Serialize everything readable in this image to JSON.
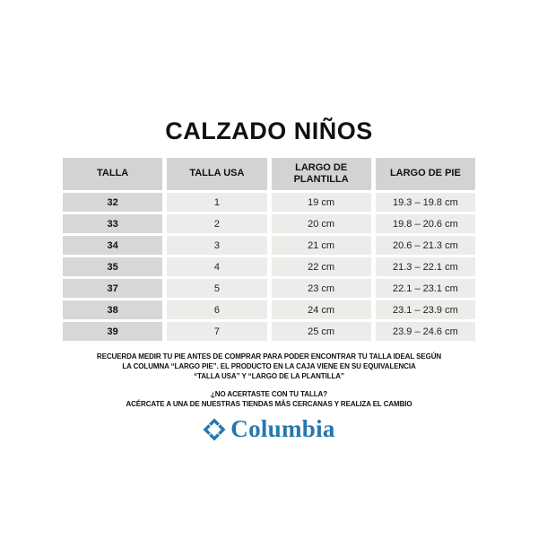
{
  "page": {
    "title": "CALZADO NIÑOS",
    "background_color": "#ffffff"
  },
  "chart_data": {
    "type": "table",
    "title": "CALZADO NIÑOS",
    "columns": [
      "TALLA",
      "TALLA USA",
      "LARGO DE PLANTILLA",
      "LARGO DE PIE"
    ],
    "rows": [
      [
        "32",
        "1",
        "19 cm",
        "19.3 – 19.8 cm"
      ],
      [
        "33",
        "2",
        "20 cm",
        "19.8 – 20.6 cm"
      ],
      [
        "34",
        "3",
        "21 cm",
        "20.6 – 21.3 cm"
      ],
      [
        "35",
        "4",
        "22 cm",
        "21.3 – 22.1 cm"
      ],
      [
        "37",
        "5",
        "23 cm",
        "22.1 – 23.1 cm"
      ],
      [
        "38",
        "6",
        "24 cm",
        "23.1 – 23.9 cm"
      ],
      [
        "39",
        "7",
        "25 cm",
        "23.9 – 24.6 cm"
      ]
    ],
    "header_bg": "#d3d3d3",
    "first_column_bg": "#d7d7d7",
    "cell_bg": "#edecea"
  },
  "notes": {
    "line1": "RECUERDA MEDIR TU PIE ANTES DE COMPRAR PARA PODER ENCONTRAR TU TALLA IDEAL SEGÚN",
    "line2": "LA COLUMNA “LARGO PIE”. EL PRODUCTO EN LA CAJA VIENE EN SU EQUIVALENCIA",
    "line3": "“TALLA USA” Y “LARGO DE LA PLANTILLA”"
  },
  "exchange": {
    "line1": "¿NO ACERTASTE CON TU TALLA?",
    "line2": "ACÉRCATE A UNA DE NUESTRAS TIENDAS MÁS CERCANAS Y REALIZA EL CAMBIO"
  },
  "brand": {
    "name": "Columbia",
    "color": "#2577AE",
    "icon": "columbia-diamond-icon"
  }
}
